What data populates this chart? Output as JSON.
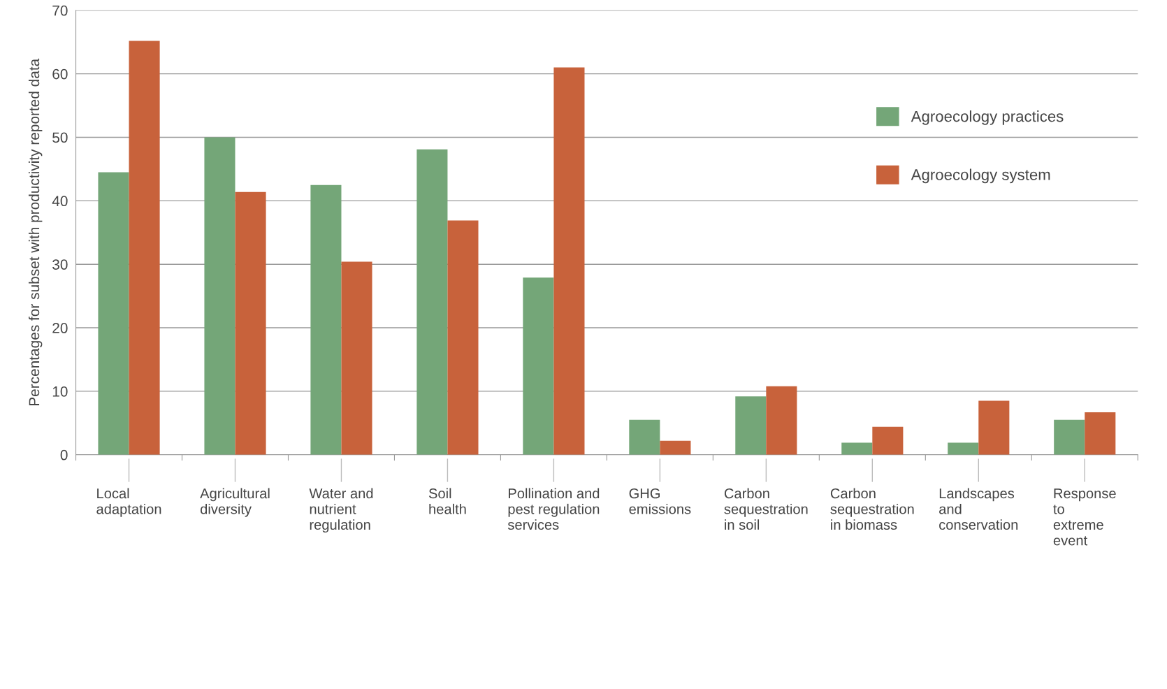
{
  "chart_data": {
    "type": "bar",
    "ylabel": "Percentages for subset with productivity reported data",
    "categories": [
      "Local\nadaptation",
      "Agricultural\ndiversity",
      "Water and\nnutrient\nregulation",
      "Soil\nhealth",
      "Pollination and\npest regulation\nservices",
      "GHG\nemissions",
      "Carbon\nsequestration\nin soil",
      "Carbon\nsequestration\nin biomass",
      "Landscapes\nand\nconservation",
      "Response\nto\nextreme\nevent"
    ],
    "series": [
      {
        "name": "Agroecology practices",
        "color": "#74a678",
        "values": [
          44.5,
          50.0,
          42.5,
          48.1,
          27.9,
          5.5,
          9.2,
          1.9,
          1.9,
          5.5
        ]
      },
      {
        "name": "Agroecology system",
        "color": "#c8623b",
        "values": [
          65.2,
          41.4,
          30.4,
          36.9,
          61.0,
          2.2,
          10.8,
          4.4,
          8.5,
          6.7
        ]
      }
    ],
    "ylim": [
      0,
      70
    ],
    "yticks": [
      0,
      10,
      20,
      30,
      40,
      50,
      60,
      70
    ],
    "grid": "y",
    "legend": "top right"
  }
}
